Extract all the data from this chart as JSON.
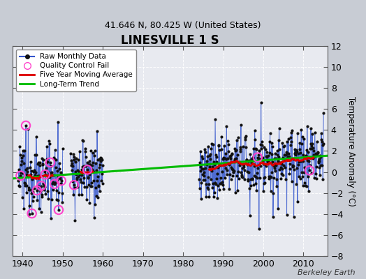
{
  "title": "LINESVILLE 1 S",
  "subtitle": "41.646 N, 80.425 W (United States)",
  "ylabel": "Temperature Anomaly (°C)",
  "watermark": "Berkeley Earth",
  "xlim": [
    1937.5,
    2016
  ],
  "ylim": [
    -8,
    12
  ],
  "yticks": [
    -8,
    -6,
    -4,
    -2,
    0,
    2,
    4,
    6,
    8,
    10,
    12
  ],
  "xticks": [
    1940,
    1950,
    1960,
    1970,
    1980,
    1990,
    2000,
    2010
  ],
  "bg_color": "#c8ccd4",
  "plot_bg_color": "#e8eaf0",
  "raw_line_color": "#3355cc",
  "raw_dot_color": "#111111",
  "qc_fail_color": "#ff44cc",
  "moving_avg_color": "#dd0000",
  "trend_color": "#00bb00",
  "trend_x": [
    1937.5,
    2016.0
  ],
  "trend_y": [
    -0.62,
    1.55
  ],
  "seg1a_years": [
    1939,
    1950
  ],
  "seg1b_years": [
    1952,
    1960
  ],
  "seg2_years": [
    1984,
    2015
  ],
  "seg1a_trend": [
    -0.5,
    -0.1
  ],
  "seg1b_trend": [
    0.5,
    -0.2
  ],
  "seg2_trend": [
    0.15,
    1.5
  ]
}
